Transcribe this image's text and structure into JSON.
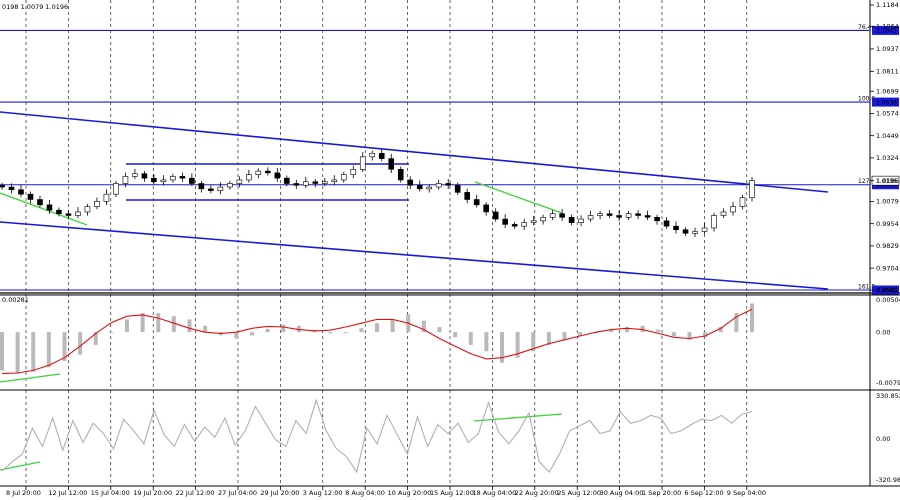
{
  "chart_data": {
    "type": "candlestick",
    "symbol_header": "0198 1.0079 1.0196",
    "price_axis": {
      "ticks": [
        "1.1184",
        "1.1064",
        "1.0937",
        "1.0811",
        "1.0699",
        "1.0574",
        "1.0449",
        "1.0324",
        "1.0196",
        "1.0079",
        "0.9954",
        "0.9829",
        "0.9704",
        "0.9581"
      ],
      "ylim": [
        0.9581,
        1.1184
      ]
    },
    "time_axis": {
      "ticks": [
        "8 Jul 20:00",
        "12 Jul 12:00",
        "15 Jul 04:00",
        "19 Jul 20:00",
        "22 Jul 12:00",
        "27 Jul 04:00",
        "29 Jul 20:00",
        "3 Aug 12:00",
        "8 Aug 04:00",
        "10 Aug 20:00",
        "15 Aug 12:00",
        "18 Aug 04:00",
        "22 Aug 20:00",
        "25 Aug 12:00",
        "30 Aug 04:00",
        "1 Sep 20:00",
        "6 Sep 12:00",
        "9 Sep 04:00"
      ]
    },
    "price_series": [
      1.016,
      1.0145,
      1.012,
      1.009,
      1.006,
      1.003,
      1.001,
      1.0,
      1.002,
      1.005,
      1.008,
      1.012,
      1.018,
      1.022,
      1.0235,
      1.021,
      1.019,
      1.02,
      1.022,
      1.021,
      1.018,
      1.015,
      1.014,
      1.016,
      1.018,
      1.02,
      1.023,
      1.025,
      1.024,
      1.021,
      1.018,
      1.017,
      1.019,
      1.018,
      1.019,
      1.02,
      1.023,
      1.026,
      1.033,
      1.035,
      1.032,
      1.026,
      1.02,
      1.017,
      1.015,
      1.016,
      1.018,
      1.017,
      1.013,
      1.009,
      1.006,
      1.002,
      0.998,
      0.995,
      0.994,
      0.996,
      0.997,
      0.999,
      1.001,
      0.999,
      0.996,
      0.998,
      1.0,
      1.001,
      1.0,
      0.999,
      1.001,
      1.0,
      0.999,
      0.997,
      0.994,
      0.992,
      0.99,
      0.991,
      0.993,
      1.0,
      1.002,
      1.005,
      1.01,
      1.0196
    ],
    "levels": [
      {
        "label": "76.4",
        "value": 1.1041,
        "tag": "1.1041"
      },
      {
        "label": "100.0",
        "value": 1.0638,
        "tag": "1.0638"
      },
      {
        "label": "127.2",
        "value": 1.0173,
        "tag": "1.0173"
      },
      {
        "label": "161.8",
        "value": 0.9581,
        "tag": "0.9581"
      }
    ],
    "current_price_tag": "1.0196",
    "macd": {
      "header": "0.00281",
      "ticks": [
        "0.00504",
        "0.00",
        "-0.00797"
      ],
      "histogram": [
        -0.006,
        -0.0065,
        -0.0062,
        -0.0055,
        -0.0045,
        -0.0035,
        -0.002,
        0.0,
        0.002,
        0.003,
        0.003,
        0.0025,
        0.002,
        0.001,
        -0.0005,
        -0.001,
        -0.0005,
        0.0005,
        0.0012,
        0.001,
        0.0004,
        -0.0002,
        0.0,
        0.0006,
        0.0014,
        0.002,
        0.0028,
        0.0018,
        0.0008,
        -0.0008,
        -0.002,
        -0.003,
        -0.0048,
        -0.004,
        -0.003,
        -0.002,
        -0.0012,
        -0.0006,
        0.0,
        0.0004,
        0.0008,
        0.001,
        0.0004,
        -0.0006,
        -0.0012,
        -0.0008,
        0.0008,
        0.003,
        0.0045
      ],
      "signal": [
        -0.0065,
        -0.0064,
        -0.006,
        -0.0052,
        -0.004,
        -0.0022,
        -0.0002,
        0.0015,
        0.0025,
        0.0027,
        0.0022,
        0.0014,
        0.0006,
        0.0,
        -0.0002,
        0.0,
        0.0006,
        0.0009,
        0.0008,
        0.0004,
        0.0002,
        0.0003,
        0.0008,
        0.0014,
        0.002,
        0.002,
        0.0014,
        0.0004,
        -0.001,
        -0.0022,
        -0.0034,
        -0.0042,
        -0.004,
        -0.0034,
        -0.0026,
        -0.0018,
        -0.0012,
        -0.0006,
        0.0,
        0.0004,
        0.0006,
        0.0004,
        -0.0002,
        -0.0008,
        -0.001,
        -0.0006,
        0.0006,
        0.0024,
        0.0036
      ]
    },
    "cci": {
      "ticks": [
        "330.8524",
        "0.00",
        "-320.985"
      ],
      "series": [
        -250,
        -180,
        -120,
        80,
        -60,
        160,
        -90,
        140,
        -30,
        120,
        40,
        -80,
        150,
        60,
        -40,
        220,
        30,
        -60,
        110,
        -20,
        90,
        10,
        160,
        -50,
        60,
        250,
        120,
        -10,
        -60,
        140,
        40,
        300,
        60,
        -80,
        -140,
        -260,
        80,
        -40,
        180,
        30,
        -120,
        170,
        -60,
        110,
        40,
        120,
        -30,
        40,
        280,
        50,
        -40,
        60,
        200,
        -180,
        -260,
        -120,
        60,
        100,
        140,
        40,
        60,
        210,
        120,
        140,
        180,
        160,
        40,
        60,
        110,
        150,
        140,
        180,
        120,
        190,
        210
      ]
    }
  }
}
